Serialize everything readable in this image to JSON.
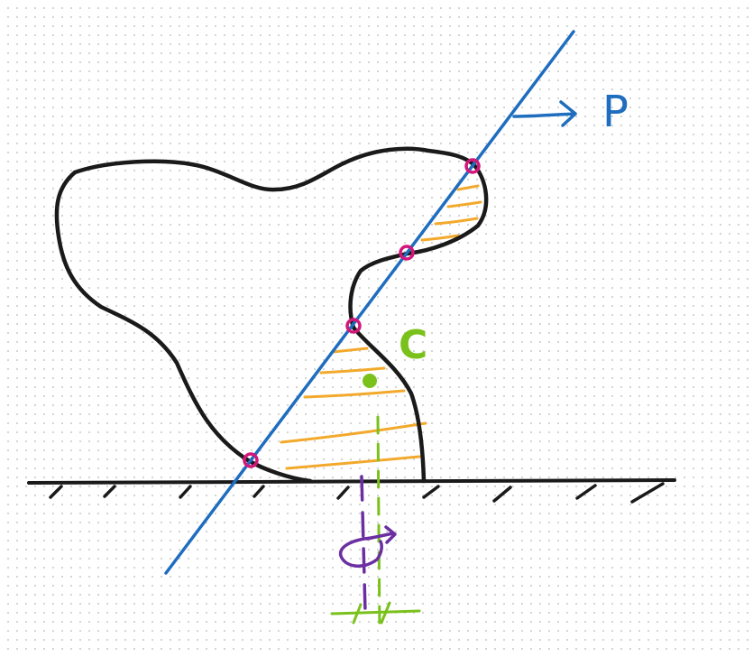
{
  "diagram": {
    "line_label": "P",
    "centroid_label": "C",
    "colors": {
      "outline": "#1a1a1a",
      "line": "#1f6dbf",
      "hatch": "#f2a92c",
      "points": "#d2177a",
      "centroid": "#7ac11c",
      "pivot": "#6b2fa1",
      "background_dots": "#c9c9c9"
    }
  }
}
